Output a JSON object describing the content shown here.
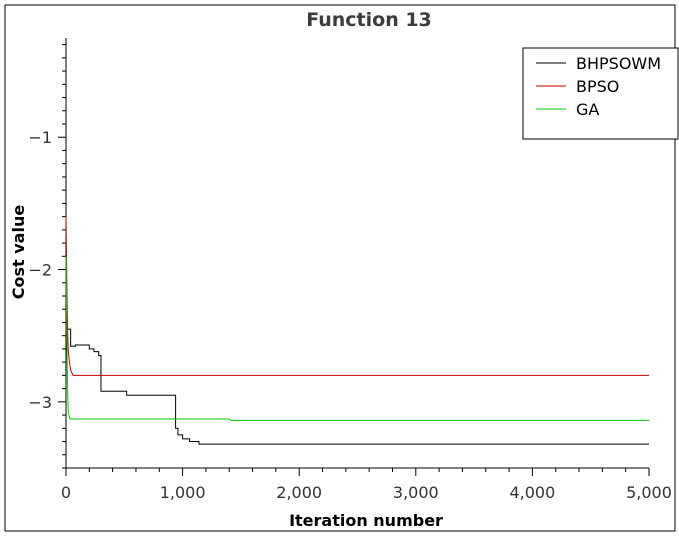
{
  "chart_data": {
    "type": "line",
    "title": "Function 13",
    "xlabel": "Iteration number",
    "ylabel": "Cost value",
    "xlim": [
      0,
      5000
    ],
    "ylim": [
      -3.5,
      -0.25
    ],
    "xticks": [
      0,
      1000,
      2000,
      3000,
      4000,
      5000
    ],
    "xtick_labels": [
      "0",
      "1,000",
      "2,000",
      "3,000",
      "4,000",
      "5,000"
    ],
    "yticks": [
      -3,
      -2,
      -1
    ],
    "ytick_labels": [
      "−3",
      "−2",
      "−1"
    ],
    "grid": false,
    "legend": "top-right",
    "series": [
      {
        "name": "BHPSOWM",
        "color": "#000000",
        "x": [
          0,
          10,
          10,
          40,
          40,
          80,
          80,
          200,
          200,
          240,
          240,
          280,
          280,
          300,
          300,
          520,
          520,
          940,
          940,
          960,
          960,
          1000,
          1000,
          1060,
          1060,
          1140,
          1140,
          1400,
          1400,
          5000
        ],
        "y": [
          -2.42,
          -2.42,
          -2.45,
          -2.45,
          -2.58,
          -2.58,
          -2.57,
          -2.57,
          -2.6,
          -2.6,
          -2.62,
          -2.62,
          -2.65,
          -2.65,
          -2.92,
          -2.92,
          -2.95,
          -2.95,
          -3.2,
          -3.2,
          -3.25,
          -3.25,
          -3.28,
          -3.28,
          -3.3,
          -3.3,
          -3.32,
          -3.32,
          -3.32,
          -3.32
        ]
      },
      {
        "name": "BPSO",
        "color": "#c00000",
        "x": [
          0,
          5,
          10,
          15,
          20,
          30,
          40,
          60,
          5000
        ],
        "y": [
          -1.6,
          -1.95,
          -2.3,
          -2.5,
          -2.62,
          -2.7,
          -2.76,
          -2.8,
          -2.8
        ]
      },
      {
        "name": "GA",
        "color": "#00cc00",
        "x": [
          0,
          5,
          10,
          15,
          20,
          30,
          40,
          60,
          1400,
          1410,
          5000
        ],
        "y": [
          -1.9,
          -2.35,
          -2.7,
          -2.95,
          -3.08,
          -3.12,
          -3.13,
          -3.13,
          -3.13,
          -3.14,
          -3.14
        ]
      }
    ]
  }
}
